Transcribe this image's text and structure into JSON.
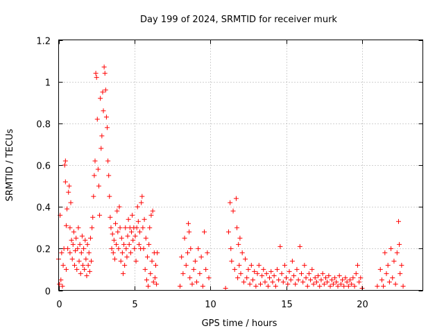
{
  "chart_data": {
    "type": "scatter",
    "title": "Day 199 of 2024, SRMTID for receiver murk",
    "xlabel": "GPS time / hours",
    "ylabel": "SRMTID / TECUs",
    "xlim": [
      0,
      24
    ],
    "ylim": [
      0,
      1.2
    ],
    "xticks": [
      0,
      5,
      10,
      15,
      20
    ],
    "yticks": [
      0,
      0.2,
      0.4,
      0.6,
      0.8,
      1,
      1.2
    ],
    "xtick_labels": [
      "0",
      "5",
      "10",
      "15",
      "20"
    ],
    "ytick_labels": [
      "0",
      "0.2",
      "0.4",
      "0.6",
      "0.8",
      "1",
      "1.2"
    ],
    "grid": true,
    "marker": "plus",
    "series": [
      {
        "name": "SRMTID",
        "color": "#ff0000",
        "points": [
          [
            0.0,
            0.15
          ],
          [
            0.05,
            0.03
          ],
          [
            0.1,
            0.36
          ],
          [
            0.15,
            0.05
          ],
          [
            0.2,
            0.18
          ],
          [
            0.25,
            0.02
          ],
          [
            0.3,
            0.12
          ],
          [
            0.35,
            0.2
          ],
          [
            0.4,
            0.6
          ],
          [
            0.45,
            0.62
          ],
          [
            0.45,
            0.52
          ],
          [
            0.5,
            0.31
          ],
          [
            0.5,
            0.1
          ],
          [
            0.55,
            0.39
          ],
          [
            0.6,
            0.2
          ],
          [
            0.65,
            0.47
          ],
          [
            0.7,
            0.5
          ],
          [
            0.75,
            0.3
          ],
          [
            0.75,
            0.18
          ],
          [
            0.8,
            0.42
          ],
          [
            0.85,
            0.24
          ],
          [
            0.9,
            0.15
          ],
          [
            0.95,
            0.22
          ],
          [
            1.0,
            0.28
          ],
          [
            1.05,
            0.12
          ],
          [
            1.1,
            0.19
          ],
          [
            1.15,
            0.25
          ],
          [
            1.2,
            0.1
          ],
          [
            1.25,
            0.2
          ],
          [
            1.3,
            0.3
          ],
          [
            1.35,
            0.14
          ],
          [
            1.4,
            0.22
          ],
          [
            1.45,
            0.08
          ],
          [
            1.5,
            0.18
          ],
          [
            1.55,
            0.26
          ],
          [
            1.6,
            0.12
          ],
          [
            1.65,
            0.2
          ],
          [
            1.7,
            0.1
          ],
          [
            1.75,
            0.24
          ],
          [
            1.8,
            0.15
          ],
          [
            1.85,
            0.07
          ],
          [
            1.9,
            0.22
          ],
          [
            1.95,
            0.12
          ],
          [
            2.0,
            0.18
          ],
          [
            2.05,
            0.09
          ],
          [
            2.1,
            0.25
          ],
          [
            2.15,
            0.14
          ],
          [
            2.2,
            0.3
          ],
          [
            2.25,
            0.35
          ],
          [
            2.3,
            0.45
          ],
          [
            2.35,
            0.55
          ],
          [
            2.4,
            0.62
          ],
          [
            2.45,
            1.04
          ],
          [
            2.5,
            1.02
          ],
          [
            2.55,
            0.82
          ],
          [
            2.6,
            0.58
          ],
          [
            2.65,
            0.5
          ],
          [
            2.7,
            0.36
          ],
          [
            2.75,
            0.92
          ],
          [
            2.8,
            0.68
          ],
          [
            2.85,
            0.74
          ],
          [
            2.9,
            0.95
          ],
          [
            2.95,
            0.86
          ],
          [
            3.0,
            1.07
          ],
          [
            3.05,
            1.04
          ],
          [
            3.1,
            0.96
          ],
          [
            3.15,
            0.83
          ],
          [
            3.2,
            0.78
          ],
          [
            3.25,
            0.62
          ],
          [
            3.3,
            0.55
          ],
          [
            3.35,
            0.45
          ],
          [
            3.4,
            0.35
          ],
          [
            3.45,
            0.3
          ],
          [
            3.5,
            0.2
          ],
          [
            3.55,
            0.27
          ],
          [
            3.6,
            0.18
          ],
          [
            3.65,
            0.24
          ],
          [
            3.7,
            0.15
          ],
          [
            3.75,
            0.32
          ],
          [
            3.8,
            0.22
          ],
          [
            3.85,
            0.38
          ],
          [
            3.9,
            0.28
          ],
          [
            3.95,
            0.2
          ],
          [
            4.0,
            0.4
          ],
          [
            4.05,
            0.3
          ],
          [
            4.1,
            0.14
          ],
          [
            4.15,
            0.25
          ],
          [
            4.2,
            0.18
          ],
          [
            4.25,
            0.08
          ],
          [
            4.3,
            0.22
          ],
          [
            4.35,
            0.12
          ],
          [
            4.4,
            0.3
          ],
          [
            4.45,
            0.2
          ],
          [
            4.5,
            0.16
          ],
          [
            4.55,
            0.26
          ],
          [
            4.6,
            0.34
          ],
          [
            4.65,
            0.22
          ],
          [
            4.7,
            0.3
          ],
          [
            4.75,
            0.18
          ],
          [
            4.8,
            0.28
          ],
          [
            4.85,
            0.36
          ],
          [
            4.9,
            0.24
          ],
          [
            4.95,
            0.3
          ],
          [
            5.0,
            0.2
          ],
          [
            5.05,
            0.26
          ],
          [
            5.1,
            0.14
          ],
          [
            5.15,
            0.3
          ],
          [
            5.2,
            0.4
          ],
          [
            5.25,
            0.33
          ],
          [
            5.3,
            0.22
          ],
          [
            5.35,
            0.28
          ],
          [
            5.4,
            0.2
          ],
          [
            5.45,
            0.42
          ],
          [
            5.5,
            0.45
          ],
          [
            5.55,
            0.3
          ],
          [
            5.6,
            0.2
          ],
          [
            5.65,
            0.34
          ],
          [
            5.7,
            0.1
          ],
          [
            5.75,
            0.25
          ],
          [
            5.8,
            0.05
          ],
          [
            5.85,
            0.16
          ],
          [
            5.9,
            0.02
          ],
          [
            5.95,
            0.22
          ],
          [
            6.0,
            0.3
          ],
          [
            6.05,
            0.08
          ],
          [
            6.1,
            0.36
          ],
          [
            6.15,
            0.14
          ],
          [
            6.2,
            0.38
          ],
          [
            6.25,
            0.04
          ],
          [
            6.3,
            0.18
          ],
          [
            6.35,
            0.06
          ],
          [
            6.4,
            0.12
          ],
          [
            6.45,
            0.03
          ],
          [
            6.5,
            0.18
          ],
          [
            8.0,
            0.02
          ],
          [
            8.1,
            0.16
          ],
          [
            8.2,
            0.08
          ],
          [
            8.3,
            0.25
          ],
          [
            8.4,
            0.12
          ],
          [
            8.5,
            0.18
          ],
          [
            8.55,
            0.32
          ],
          [
            8.6,
            0.28
          ],
          [
            8.65,
            0.06
          ],
          [
            8.7,
            0.2
          ],
          [
            8.8,
            0.03
          ],
          [
            8.9,
            0.1
          ],
          [
            9.0,
            0.14
          ],
          [
            9.1,
            0.04
          ],
          [
            9.2,
            0.2
          ],
          [
            9.3,
            0.08
          ],
          [
            9.4,
            0.16
          ],
          [
            9.5,
            0.02
          ],
          [
            9.6,
            0.28
          ],
          [
            9.7,
            0.1
          ],
          [
            9.8,
            0.18
          ],
          [
            9.9,
            0.06
          ],
          [
            11.0,
            0.01
          ],
          [
            11.2,
            0.28
          ],
          [
            11.3,
            0.42
          ],
          [
            11.35,
            0.2
          ],
          [
            11.4,
            0.14
          ],
          [
            11.5,
            0.38
          ],
          [
            11.6,
            0.1
          ],
          [
            11.7,
            0.44
          ],
          [
            11.75,
            0.3
          ],
          [
            11.8,
            0.06
          ],
          [
            11.85,
            0.22
          ],
          [
            11.9,
            0.12
          ],
          [
            11.95,
            0.25
          ],
          [
            12.0,
            0.08
          ],
          [
            12.1,
            0.18
          ],
          [
            12.2,
            0.04
          ],
          [
            12.3,
            0.15
          ],
          [
            12.4,
            0.06
          ],
          [
            12.5,
            0.1
          ],
          [
            12.6,
            0.03
          ],
          [
            12.7,
            0.12
          ],
          [
            12.8,
            0.05
          ],
          [
            12.9,
            0.09
          ],
          [
            13.0,
            0.02
          ],
          [
            13.1,
            0.08
          ],
          [
            13.2,
            0.12
          ],
          [
            13.3,
            0.03
          ],
          [
            13.4,
            0.07
          ],
          [
            13.5,
            0.1
          ],
          [
            13.6,
            0.04
          ],
          [
            13.7,
            0.08
          ],
          [
            13.8,
            0.02
          ],
          [
            13.9,
            0.06
          ],
          [
            14.0,
            0.09
          ],
          [
            14.1,
            0.04
          ],
          [
            14.2,
            0.07
          ],
          [
            14.3,
            0.02
          ],
          [
            14.4,
            0.1
          ],
          [
            14.5,
            0.05
          ],
          [
            14.6,
            0.21
          ],
          [
            14.7,
            0.08
          ],
          [
            14.8,
            0.04
          ],
          [
            14.9,
            0.12
          ],
          [
            15.0,
            0.06
          ],
          [
            15.1,
            0.03
          ],
          [
            15.2,
            0.09
          ],
          [
            15.3,
            0.05
          ],
          [
            15.4,
            0.14
          ],
          [
            15.5,
            0.07
          ],
          [
            15.6,
            0.03
          ],
          [
            15.7,
            0.1
          ],
          [
            15.8,
            0.05
          ],
          [
            15.9,
            0.21
          ],
          [
            16.0,
            0.08
          ],
          [
            16.1,
            0.04
          ],
          [
            16.2,
            0.12
          ],
          [
            16.3,
            0.06
          ],
          [
            16.4,
            0.02
          ],
          [
            16.5,
            0.08
          ],
          [
            16.6,
            0.05
          ],
          [
            16.7,
            0.1
          ],
          [
            16.8,
            0.03
          ],
          [
            16.9,
            0.06
          ],
          [
            17.0,
            0.04
          ],
          [
            17.1,
            0.07
          ],
          [
            17.2,
            0.02
          ],
          [
            17.3,
            0.05
          ],
          [
            17.4,
            0.08
          ],
          [
            17.5,
            0.03
          ],
          [
            17.6,
            0.06
          ],
          [
            17.7,
            0.04
          ],
          [
            17.8,
            0.07
          ],
          [
            17.9,
            0.02
          ],
          [
            18.0,
            0.05
          ],
          [
            18.1,
            0.03
          ],
          [
            18.2,
            0.06
          ],
          [
            18.3,
            0.04
          ],
          [
            18.4,
            0.02
          ],
          [
            18.5,
            0.07
          ],
          [
            18.6,
            0.03
          ],
          [
            18.7,
            0.05
          ],
          [
            18.8,
            0.02
          ],
          [
            18.9,
            0.06
          ],
          [
            19.0,
            0.04
          ],
          [
            19.1,
            0.02
          ],
          [
            19.2,
            0.05
          ],
          [
            19.3,
            0.03
          ],
          [
            19.4,
            0.06
          ],
          [
            19.5,
            0.02
          ],
          [
            19.6,
            0.08
          ],
          [
            19.7,
            0.12
          ],
          [
            19.8,
            0.04
          ],
          [
            19.9,
            0.06
          ],
          [
            20.0,
            0.01
          ],
          [
            21.0,
            0.02
          ],
          [
            21.2,
            0.1
          ],
          [
            21.3,
            0.05
          ],
          [
            21.4,
            0.02
          ],
          [
            21.5,
            0.18
          ],
          [
            21.6,
            0.08
          ],
          [
            21.7,
            0.12
          ],
          [
            21.8,
            0.04
          ],
          [
            21.9,
            0.2
          ],
          [
            22.0,
            0.06
          ],
          [
            22.1,
            0.14
          ],
          [
            22.2,
            0.03
          ],
          [
            22.3,
            0.18
          ],
          [
            22.4,
            0.33
          ],
          [
            22.45,
            0.22
          ],
          [
            22.5,
            0.08
          ],
          [
            22.6,
            0.12
          ],
          [
            22.7,
            0.02
          ]
        ]
      }
    ]
  }
}
